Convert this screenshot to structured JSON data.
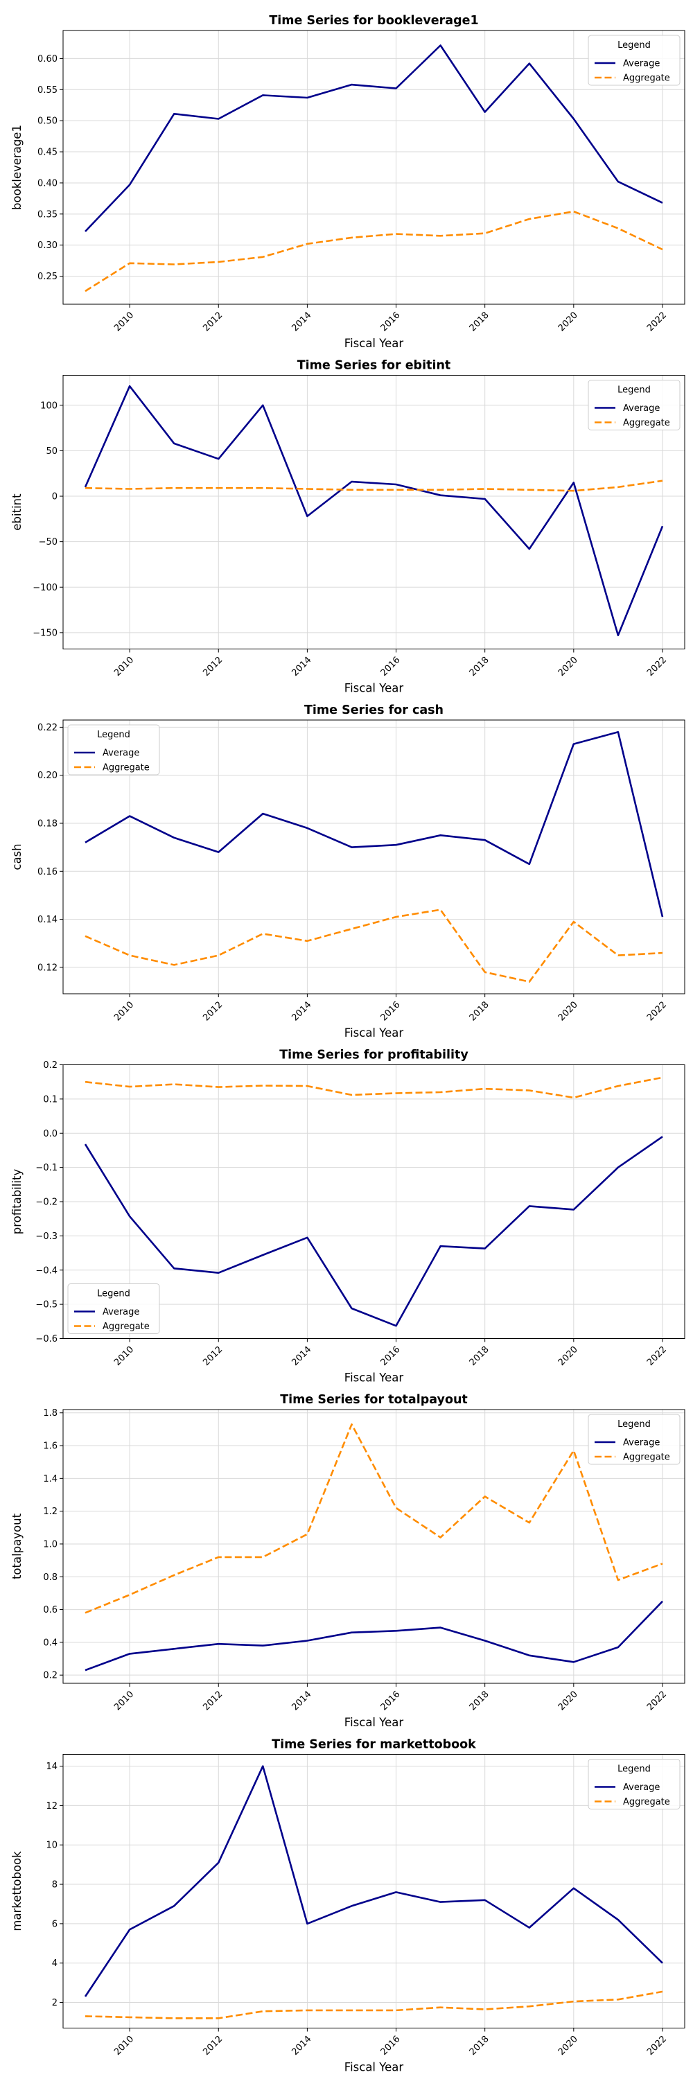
{
  "chart_data": [
    {
      "type": "line",
      "title": "Time Series for bookleverage1",
      "xlabel": "Fiscal Year",
      "ylabel": "bookleverage1",
      "xlim": [
        2008.5,
        2022.5
      ],
      "ylim": [
        0.205,
        0.645
      ],
      "xticks": [
        2010,
        2012,
        2014,
        2016,
        2018,
        2020,
        2022
      ],
      "yticks": [
        0.25,
        0.3,
        0.35,
        0.4,
        0.45,
        0.5,
        0.55,
        0.6
      ],
      "ytick_labels": [
        "0.25",
        "0.30",
        "0.35",
        "0.40",
        "0.45",
        "0.50",
        "0.55",
        "0.60"
      ],
      "grid": true,
      "legend": {
        "title": "Legend",
        "placement": "top-right"
      },
      "x": [
        2009,
        2010,
        2011,
        2012,
        2013,
        2014,
        2015,
        2016,
        2017,
        2018,
        2019,
        2020,
        2021,
        2022
      ],
      "series": [
        {
          "name": "Average",
          "color": "#00008b",
          "style": "solid",
          "values": [
            0.322,
            0.397,
            0.511,
            0.503,
            0.541,
            0.537,
            0.558,
            0.552,
            0.621,
            0.514,
            0.592,
            0.503,
            0.402,
            0.368
          ]
        },
        {
          "name": "Aggregate",
          "color": "#ff8c00",
          "style": "dashed",
          "values": [
            0.226,
            0.271,
            0.269,
            0.273,
            0.281,
            0.302,
            0.312,
            0.318,
            0.315,
            0.319,
            0.342,
            0.354,
            0.327,
            0.293
          ]
        }
      ]
    },
    {
      "type": "line",
      "title": "Time Series for ebitint",
      "xlabel": "Fiscal Year",
      "ylabel": "ebitint",
      "xlim": [
        2008.5,
        2022.5
      ],
      "ylim": [
        -168,
        133
      ],
      "xticks": [
        2010,
        2012,
        2014,
        2016,
        2018,
        2020,
        2022
      ],
      "yticks": [
        -150,
        -100,
        -50,
        0,
        50,
        100
      ],
      "ytick_labels": [
        "−150",
        "−100",
        "−50",
        "0",
        "50",
        "100"
      ],
      "grid": true,
      "legend": {
        "title": "Legend",
        "placement": "top-right"
      },
      "x": [
        2009,
        2010,
        2011,
        2012,
        2013,
        2014,
        2015,
        2016,
        2017,
        2018,
        2019,
        2020,
        2021,
        2022
      ],
      "series": [
        {
          "name": "Average",
          "color": "#00008b",
          "style": "solid",
          "values": [
            10,
            121,
            58,
            41,
            100,
            -22,
            16,
            13,
            1,
            -3,
            -58,
            15,
            -153,
            -33
          ]
        },
        {
          "name": "Aggregate",
          "color": "#ff8c00",
          "style": "dashed",
          "values": [
            9,
            8,
            9,
            9,
            9,
            8,
            7,
            7,
            7,
            8,
            7,
            6,
            10,
            17
          ]
        }
      ]
    },
    {
      "type": "line",
      "title": "Time Series for cash",
      "xlabel": "Fiscal Year",
      "ylabel": "cash",
      "xlim": [
        2008.5,
        2022.5
      ],
      "ylim": [
        0.109,
        0.223
      ],
      "xticks": [
        2010,
        2012,
        2014,
        2016,
        2018,
        2020,
        2022
      ],
      "yticks": [
        0.12,
        0.14,
        0.16,
        0.18,
        0.2,
        0.22
      ],
      "ytick_labels": [
        "0.12",
        "0.14",
        "0.16",
        "0.18",
        "0.20",
        "0.22"
      ],
      "grid": true,
      "legend": {
        "title": "Legend",
        "placement": "top-left"
      },
      "x": [
        2009,
        2010,
        2011,
        2012,
        2013,
        2014,
        2015,
        2016,
        2017,
        2018,
        2019,
        2020,
        2021,
        2022
      ],
      "series": [
        {
          "name": "Average",
          "color": "#00008b",
          "style": "solid",
          "values": [
            0.172,
            0.183,
            0.174,
            0.168,
            0.184,
            0.178,
            0.17,
            0.171,
            0.175,
            0.173,
            0.163,
            0.213,
            0.218,
            0.141
          ]
        },
        {
          "name": "Aggregate",
          "color": "#ff8c00",
          "style": "dashed",
          "values": [
            0.133,
            0.125,
            0.121,
            0.125,
            0.134,
            0.131,
            0.136,
            0.141,
            0.144,
            0.118,
            0.114,
            0.139,
            0.125,
            0.126
          ]
        }
      ]
    },
    {
      "type": "line",
      "title": "Time Series for profitability",
      "xlabel": "Fiscal Year",
      "ylabel": "profitability",
      "xlim": [
        2008.5,
        2022.5
      ],
      "ylim": [
        -0.6,
        0.2
      ],
      "xticks": [
        2010,
        2012,
        2014,
        2016,
        2018,
        2020,
        2022
      ],
      "yticks": [
        -0.6,
        -0.5,
        -0.4,
        -0.3,
        -0.2,
        -0.1,
        0.0,
        0.1,
        0.2
      ],
      "ytick_labels": [
        "−0.6",
        "−0.5",
        "−0.4",
        "−0.3",
        "−0.2",
        "−0.1",
        "0.0",
        "0.1",
        "0.2"
      ],
      "grid": true,
      "legend": {
        "title": "Legend",
        "placement": "bottom-left"
      },
      "x": [
        2009,
        2010,
        2011,
        2012,
        2013,
        2014,
        2015,
        2016,
        2017,
        2018,
        2019,
        2020,
        2021,
        2022
      ],
      "series": [
        {
          "name": "Average",
          "color": "#00008b",
          "style": "solid",
          "values": [
            -0.032,
            -0.243,
            -0.395,
            -0.408,
            -0.356,
            -0.305,
            -0.512,
            -0.563,
            -0.33,
            -0.337,
            -0.213,
            -0.223,
            -0.1,
            -0.01
          ]
        },
        {
          "name": "Aggregate",
          "color": "#ff8c00",
          "style": "dashed",
          "values": [
            0.15,
            0.136,
            0.143,
            0.135,
            0.139,
            0.138,
            0.112,
            0.117,
            0.12,
            0.13,
            0.125,
            0.104,
            0.138,
            0.163
          ]
        }
      ]
    },
    {
      "type": "line",
      "title": "Time Series for totalpayout",
      "xlabel": "Fiscal Year",
      "ylabel": "totalpayout",
      "xlim": [
        2008.5,
        2022.5
      ],
      "ylim": [
        0.15,
        1.82
      ],
      "xticks": [
        2010,
        2012,
        2014,
        2016,
        2018,
        2020,
        2022
      ],
      "yticks": [
        0.2,
        0.4,
        0.6,
        0.8,
        1.0,
        1.2,
        1.4,
        1.6,
        1.8
      ],
      "ytick_labels": [
        "0.2",
        "0.4",
        "0.6",
        "0.8",
        "1.0",
        "1.2",
        "1.4",
        "1.6",
        "1.8"
      ],
      "grid": true,
      "legend": {
        "title": "Legend",
        "placement": "top-right"
      },
      "x": [
        2009,
        2010,
        2011,
        2012,
        2013,
        2014,
        2015,
        2016,
        2017,
        2018,
        2019,
        2020,
        2021,
        2022
      ],
      "series": [
        {
          "name": "Average",
          "color": "#00008b",
          "style": "solid",
          "values": [
            0.23,
            0.33,
            0.36,
            0.39,
            0.38,
            0.41,
            0.46,
            0.47,
            0.49,
            0.41,
            0.32,
            0.28,
            0.37,
            0.65
          ]
        },
        {
          "name": "Aggregate",
          "color": "#ff8c00",
          "style": "dashed",
          "values": [
            0.58,
            0.69,
            0.81,
            0.92,
            0.92,
            1.06,
            1.73,
            1.22,
            1.04,
            1.29,
            1.13,
            1.57,
            0.78,
            0.88
          ]
        }
      ]
    },
    {
      "type": "line",
      "title": "Time Series for markettobook",
      "xlabel": "Fiscal Year",
      "ylabel": "markettobook",
      "xlim": [
        2008.5,
        2022.5
      ],
      "ylim": [
        0.7,
        14.6
      ],
      "xticks": [
        2010,
        2012,
        2014,
        2016,
        2018,
        2020,
        2022
      ],
      "yticks": [
        2,
        4,
        6,
        8,
        10,
        12,
        14
      ],
      "ytick_labels": [
        "2",
        "4",
        "6",
        "8",
        "10",
        "12",
        "14"
      ],
      "grid": true,
      "legend": {
        "title": "Legend",
        "placement": "top-right"
      },
      "x": [
        2009,
        2010,
        2011,
        2012,
        2013,
        2014,
        2015,
        2016,
        2017,
        2018,
        2019,
        2020,
        2021,
        2022
      ],
      "series": [
        {
          "name": "Average",
          "color": "#00008b",
          "style": "solid",
          "values": [
            2.3,
            5.7,
            6.9,
            9.1,
            14.0,
            6.0,
            6.9,
            7.6,
            7.1,
            7.2,
            5.8,
            7.8,
            6.2,
            4.0
          ]
        },
        {
          "name": "Aggregate",
          "color": "#ff8c00",
          "style": "dashed",
          "values": [
            1.3,
            1.25,
            1.2,
            1.2,
            1.55,
            1.6,
            1.6,
            1.6,
            1.75,
            1.65,
            1.8,
            2.05,
            2.15,
            2.55
          ]
        }
      ]
    }
  ]
}
